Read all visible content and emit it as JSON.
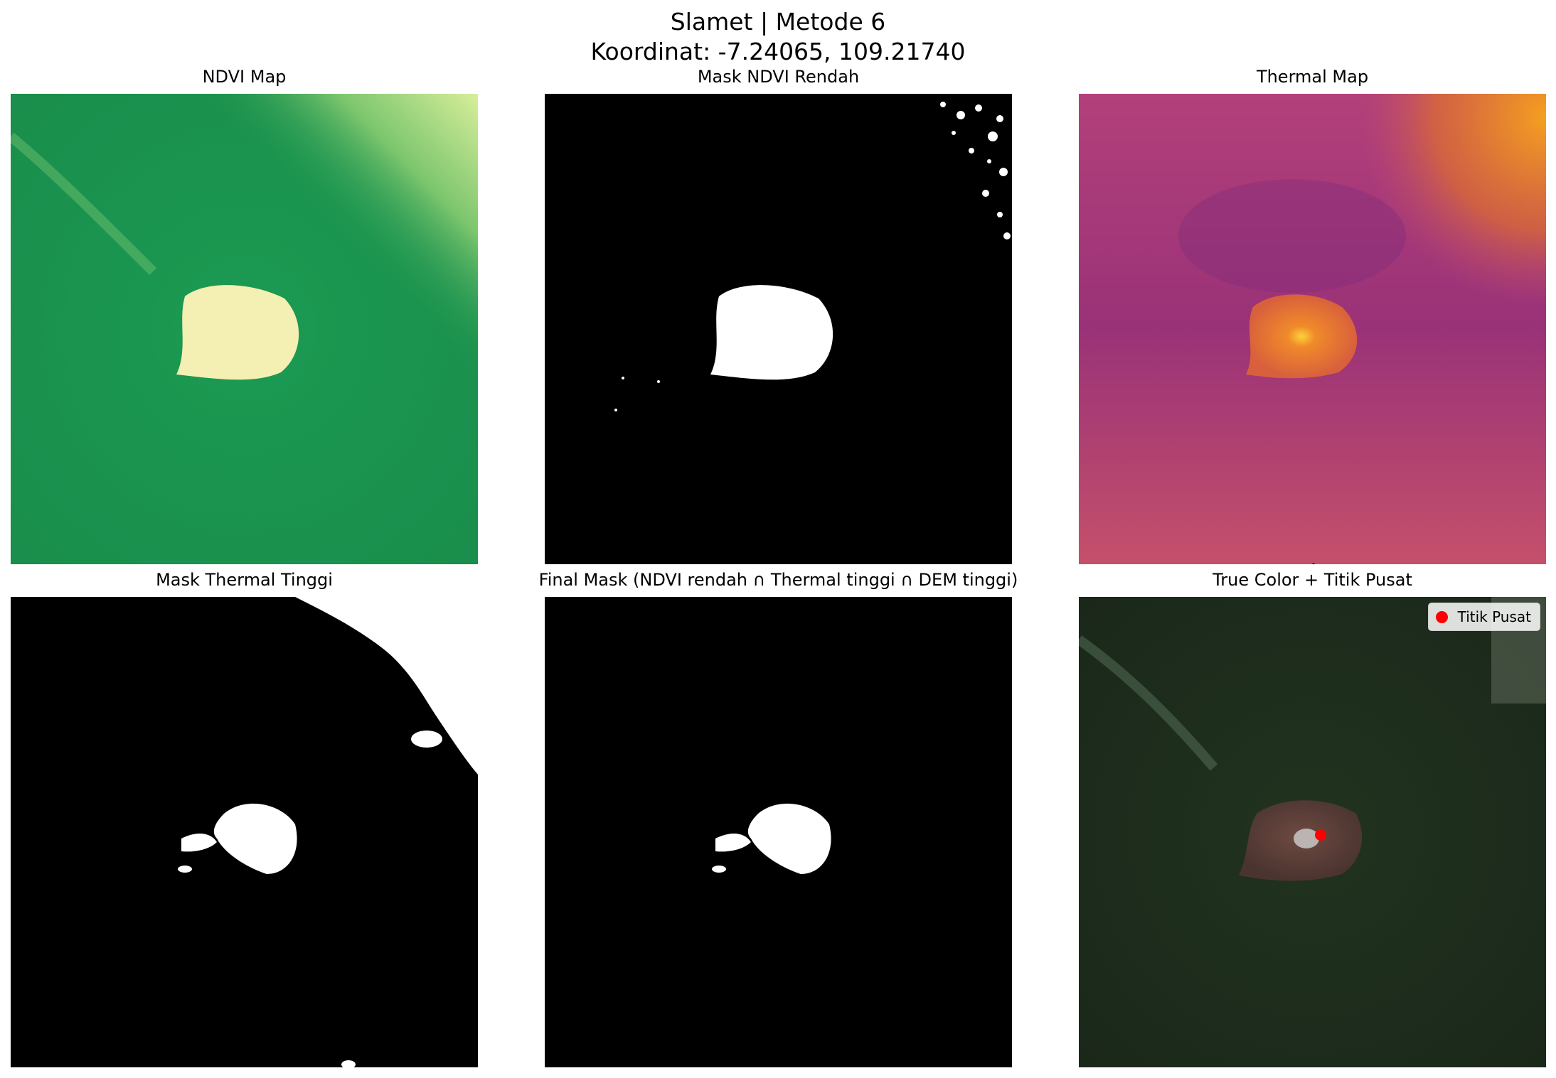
{
  "figure": {
    "title_line1": "Slamet | Metode 6",
    "title_line2": "Koordinat: -7.24065, 109.21740"
  },
  "panels": [
    {
      "title": "NDVI Map",
      "colormap": "RdYlGn"
    },
    {
      "title": "Mask NDVI Rendah",
      "colormap": "gray"
    },
    {
      "title": "Thermal Map",
      "colormap": "inferno"
    },
    {
      "title": "Mask Thermal Tinggi",
      "colormap": "gray"
    },
    {
      "title": "Final Mask (NDVI rendah ∩ Thermal tinggi ∩ DEM tinggi)",
      "colormap": "gray"
    },
    {
      "title": "True Color + Titik Pusat",
      "colormap": "rgb"
    }
  ],
  "legend": {
    "label": "Titik Pusat",
    "marker_color": "#ff0000"
  },
  "colors": {
    "ndvi_vegetation": "#1e9650",
    "ndvi_bare": "#f5f0b0",
    "thermal_low": "#8a2a78",
    "thermal_high": "#f5a020",
    "mask_on": "#ffffff",
    "mask_off": "#000000",
    "true_color_forest": "#1e2d1c",
    "true_color_crater": "#5a3c36"
  }
}
